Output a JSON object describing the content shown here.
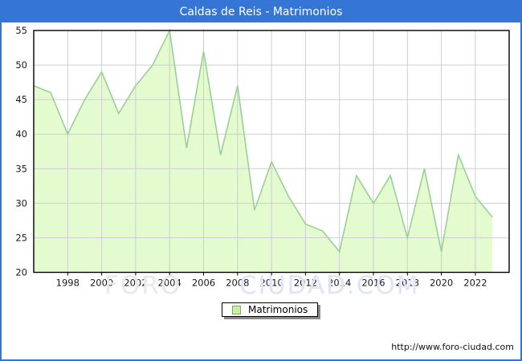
{
  "window": {
    "title": "Caldas de Reis - Matrimonios"
  },
  "legend": {
    "label": "Matrimonios"
  },
  "watermark": {
    "part1": "FORO",
    "part2": "CIUDAD.COM"
  },
  "footer": {
    "url": "http://www.foro-ciudad.com"
  },
  "colors": {
    "titlebar": "#3575d5",
    "frame_border": "#3575d5",
    "axis_frame": "#000000",
    "grid": "#cdcdd5",
    "area_fill": "#e3fbce",
    "area_stroke": "#99d095",
    "tick_label": "#1a1a1a",
    "legend_swatch_fill": "#c3f39e",
    "legend_swatch_border": "#76ae5a"
  },
  "chart_data": {
    "type": "area",
    "title": "Caldas de Reis - Matrimonios",
    "x": [
      1996,
      1997,
      1998,
      1999,
      2000,
      2001,
      2002,
      2003,
      2004,
      2005,
      2006,
      2007,
      2008,
      2009,
      2010,
      2011,
      2012,
      2013,
      2014,
      2015,
      2016,
      2017,
      2018,
      2019,
      2020,
      2021,
      2022,
      2023
    ],
    "series": [
      {
        "name": "Matrimonios",
        "values": [
          47,
          46,
          40,
          45,
          49,
          43,
          47,
          50,
          55,
          38,
          52,
          37,
          47,
          29,
          36,
          31,
          27,
          26,
          23,
          34,
          30,
          34,
          25,
          35,
          23,
          37,
          31,
          28
        ]
      }
    ],
    "xlabel": "",
    "ylabel": "",
    "ylim": [
      20,
      55
    ],
    "ytick_step": 5,
    "xticks": [
      1998,
      2000,
      2002,
      2004,
      2006,
      2008,
      2010,
      2012,
      2014,
      2016,
      2018,
      2020,
      2022
    ],
    "grid": true,
    "legend_position": "bottom-center"
  }
}
